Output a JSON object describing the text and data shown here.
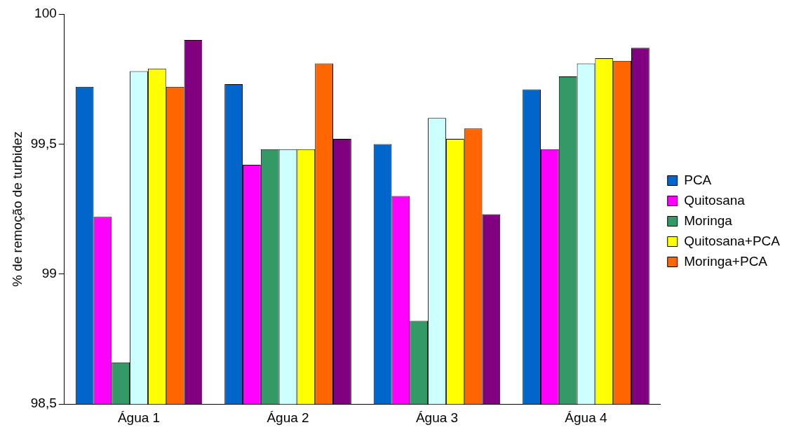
{
  "chart_data": {
    "type": "bar",
    "ylabel": "% de remoção de turbidez",
    "categories": [
      "Água 1",
      "Água 2",
      "Água 3",
      "Água 4"
    ],
    "series": [
      {
        "name": "PCA",
        "color": "#0066cc",
        "values": [
          99.72,
          99.73,
          99.5,
          99.71
        ]
      },
      {
        "name": "Quitosana",
        "color": "#ff00ff",
        "values": [
          99.22,
          99.42,
          99.3,
          99.48
        ]
      },
      {
        "name": "Moringa",
        "color": "#339966",
        "values": [
          98.66,
          99.48,
          98.82,
          99.76
        ]
      },
      {
        "color": "#ccffff",
        "values": [
          99.78,
          99.48,
          99.6,
          99.81
        ]
      },
      {
        "name": "Quitosana+PCA",
        "color": "#ffff00",
        "values": [
          99.79,
          99.48,
          99.52,
          99.83
        ]
      },
      {
        "name": "Moringa+PCA",
        "color": "#ff6600",
        "values": [
          99.72,
          99.81,
          99.56,
          99.82
        ]
      },
      {
        "color": "#800080",
        "values": [
          99.9,
          99.52,
          99.23,
          99.87
        ]
      }
    ],
    "ylim": [
      98.5,
      100
    ],
    "yticks": [
      {
        "value": 98.5,
        "label": "98,5"
      },
      99,
      {
        "value": 99.5,
        "label": "99,5"
      },
      100
    ],
    "grid": false,
    "legend": "right"
  }
}
